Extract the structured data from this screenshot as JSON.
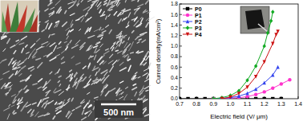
{
  "image": {
    "scale_bar": "500 nm"
  },
  "chart_data": {
    "type": "line",
    "x_label": "Electric field (V/ μm)",
    "y_label": "Current density(mA/cm²)",
    "xlim": [
      0.7,
      1.4
    ],
    "xticks": [
      0.7,
      0.8,
      0.9,
      {
        "value": 1.0,
        "label": "1.0"
      },
      1.1,
      1.2,
      1.3,
      1.4
    ],
    "ylim": [
      0,
      1.8
    ],
    "yticks": [
      {
        "value": 0,
        "label": "0.0"
      },
      0.2,
      0.4,
      0.6,
      0.8,
      {
        "value": 1.0,
        "label": "1.0"
      },
      1.2,
      1.4,
      1.6,
      1.8
    ],
    "legend": "upper-left",
    "series": [
      {
        "name": "P0",
        "color": "#000000",
        "marker": "square",
        "x": [
          0.7,
          0.75,
          0.8,
          0.85,
          0.9,
          0.95,
          1.0,
          1.05,
          1.1,
          1.15,
          1.2,
          1.25,
          1.3
        ],
        "values": [
          0,
          0,
          0,
          0,
          0,
          0,
          0,
          0,
          0,
          0,
          0,
          0,
          0
        ]
      },
      {
        "name": "P1",
        "color": "#ff33cc",
        "marker": "circle",
        "x": [
          0.9,
          1.0,
          1.05,
          1.1,
          1.15,
          1.2,
          1.25,
          1.3,
          1.35
        ],
        "values": [
          0,
          0.01,
          0.02,
          0.04,
          0.08,
          0.13,
          0.2,
          0.28,
          0.36
        ]
      },
      {
        "name": "P2",
        "color": "#3344ee",
        "marker": "triangle",
        "x": [
          0.9,
          1.0,
          1.05,
          1.1,
          1.15,
          1.2,
          1.25,
          1.28
        ],
        "values": [
          0,
          0.02,
          0.05,
          0.1,
          0.18,
          0.3,
          0.45,
          0.6
        ]
      },
      {
        "name": "P3",
        "color": "#11aa22",
        "marker": "diamond",
        "x": [
          0.9,
          0.95,
          1.0,
          1.05,
          1.1,
          1.15,
          1.2,
          1.22,
          1.24,
          1.25
        ],
        "values": [
          0,
          0.02,
          0.06,
          0.15,
          0.35,
          0.62,
          1.0,
          1.25,
          1.48,
          1.65
        ]
      },
      {
        "name": "P4",
        "color": "#cc1111",
        "marker": "triangle-down",
        "x": [
          0.95,
          1.0,
          1.05,
          1.1,
          1.15,
          1.2,
          1.25,
          1.27,
          1.28
        ],
        "values": [
          0,
          0.03,
          0.1,
          0.22,
          0.42,
          0.7,
          1.05,
          1.22,
          1.28
        ]
      }
    ]
  }
}
